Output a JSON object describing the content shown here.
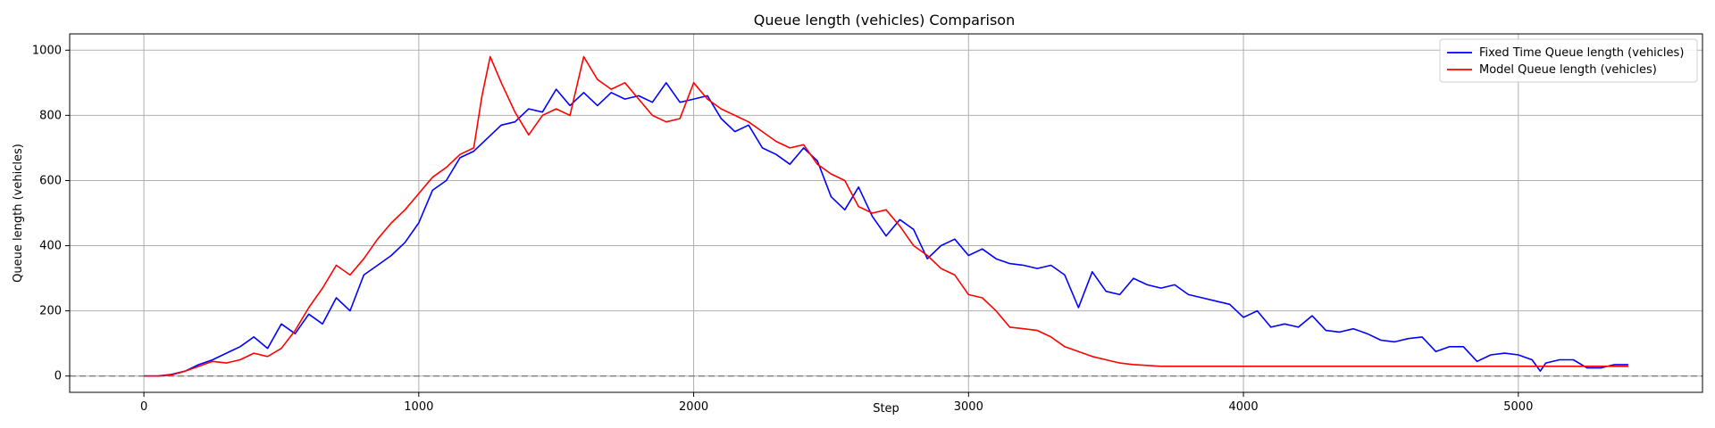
{
  "chart_data": {
    "type": "line",
    "title": "Queue length (vehicles) Comparison",
    "xlabel": "Step",
    "ylabel": "Queue length (vehicles)",
    "xlim": [
      -270,
      5670
    ],
    "ylim": [
      -50,
      1050
    ],
    "xticks": [
      0,
      1000,
      2000,
      3000,
      4000,
      5000
    ],
    "yticks": [
      0,
      200,
      400,
      600,
      800,
      1000
    ],
    "grid": true,
    "legend_position": "top-right",
    "reference_line": {
      "y": 0,
      "style": "dashed",
      "color": "#808080"
    },
    "series": [
      {
        "name": "Fixed Time Queue length (vehicles)",
        "color": "#0000ff",
        "x": [
          0,
          50,
          100,
          150,
          200,
          250,
          300,
          350,
          400,
          450,
          500,
          550,
          600,
          650,
          700,
          750,
          800,
          850,
          900,
          950,
          1000,
          1050,
          1100,
          1150,
          1200,
          1250,
          1300,
          1350,
          1400,
          1450,
          1500,
          1550,
          1600,
          1650,
          1700,
          1750,
          1800,
          1850,
          1900,
          1950,
          2000,
          2050,
          2100,
          2150,
          2200,
          2250,
          2300,
          2350,
          2400,
          2450,
          2500,
          2550,
          2600,
          2650,
          2700,
          2750,
          2800,
          2850,
          2900,
          2950,
          3000,
          3050,
          3100,
          3150,
          3200,
          3250,
          3300,
          3350,
          3400,
          3450,
          3500,
          3550,
          3600,
          3650,
          3700,
          3750,
          3800,
          3850,
          3900,
          3950,
          4000,
          4050,
          4100,
          4150,
          4200,
          4250,
          4300,
          4350,
          4400,
          4450,
          4500,
          4550,
          4600,
          4650,
          4700,
          4750,
          4800,
          4850,
          4900,
          4950,
          5000,
          5050,
          5080,
          5100,
          5150,
          5200,
          5250,
          5300,
          5350,
          5400
        ],
        "y": [
          0,
          0,
          5,
          15,
          35,
          50,
          70,
          90,
          120,
          85,
          160,
          130,
          190,
          160,
          240,
          200,
          310,
          340,
          370,
          410,
          470,
          570,
          600,
          670,
          690,
          730,
          770,
          780,
          820,
          810,
          880,
          830,
          870,
          830,
          870,
          850,
          860,
          840,
          900,
          840,
          850,
          860,
          790,
          750,
          770,
          700,
          680,
          650,
          700,
          660,
          550,
          510,
          580,
          490,
          430,
          480,
          450,
          360,
          400,
          420,
          370,
          390,
          360,
          345,
          340,
          330,
          340,
          310,
          210,
          320,
          260,
          250,
          300,
          280,
          270,
          280,
          250,
          240,
          230,
          220,
          180,
          200,
          150,
          160,
          150,
          185,
          140,
          135,
          145,
          130,
          110,
          105,
          115,
          120,
          75,
          90,
          90,
          45,
          65,
          70,
          65,
          50,
          15,
          40,
          50,
          50,
          25,
          25,
          35,
          35
        ]
      },
      {
        "name": "Model Queue length (vehicles)",
        "color": "#ff0000",
        "x": [
          0,
          50,
          100,
          150,
          200,
          250,
          300,
          350,
          400,
          450,
          500,
          550,
          600,
          650,
          700,
          750,
          800,
          850,
          900,
          950,
          1000,
          1050,
          1100,
          1150,
          1200,
          1230,
          1260,
          1300,
          1350,
          1400,
          1450,
          1500,
          1550,
          1600,
          1650,
          1700,
          1750,
          1800,
          1850,
          1900,
          1950,
          2000,
          2050,
          2100,
          2150,
          2200,
          2250,
          2300,
          2350,
          2400,
          2450,
          2500,
          2550,
          2600,
          2650,
          2700,
          2750,
          2800,
          2850,
          2900,
          2950,
          3000,
          3050,
          3100,
          3150,
          3200,
          3250,
          3300,
          3350,
          3400,
          3450,
          3500,
          3550,
          3600,
          3700,
          3800,
          4000,
          4200,
          4500,
          4800,
          5000,
          5200,
          5300,
          5400
        ],
        "y": [
          0,
          0,
          3,
          15,
          30,
          45,
          40,
          50,
          70,
          60,
          85,
          140,
          210,
          270,
          340,
          310,
          360,
          420,
          470,
          510,
          560,
          610,
          640,
          680,
          700,
          860,
          980,
          900,
          810,
          740,
          800,
          820,
          800,
          980,
          910,
          880,
          900,
          850,
          800,
          780,
          790,
          900,
          850,
          820,
          800,
          780,
          750,
          720,
          700,
          710,
          650,
          620,
          600,
          520,
          500,
          510,
          460,
          400,
          370,
          330,
          310,
          250,
          240,
          200,
          150,
          145,
          140,
          120,
          90,
          75,
          60,
          50,
          40,
          35,
          30,
          30,
          30,
          30,
          30,
          30,
          30,
          30,
          30,
          30
        ]
      }
    ]
  }
}
